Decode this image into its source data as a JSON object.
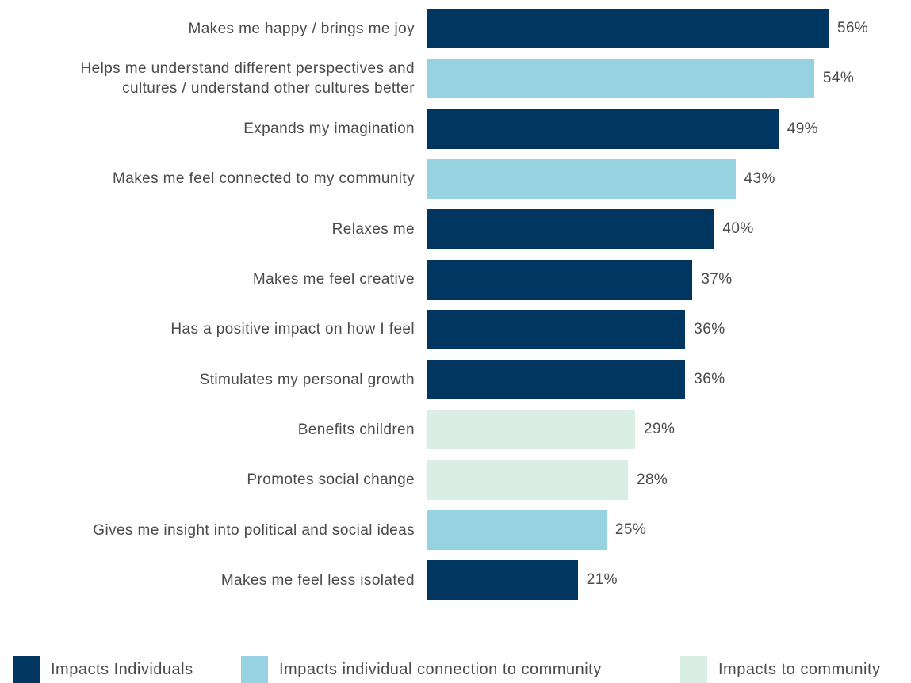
{
  "chart_data": {
    "type": "bar",
    "orientation": "horizontal",
    "categories": [
      "Makes me happy / brings me joy",
      "Helps me understand different perspectives and cultures / understand other cultures better",
      "Expands my imagination",
      "Makes me feel connected to my community",
      "Relaxes me",
      "Makes me feel creative",
      "Has a positive impact on how I feel",
      "Stimulates my personal growth",
      "Benefits children",
      "Promotes social change",
      "Gives me insight into political and social ideas",
      "Makes me feel less isolated"
    ],
    "category_lines": [
      [
        "Makes me happy / brings me joy"
      ],
      [
        "Helps me understand different perspectives and",
        "cultures / understand other cultures better"
      ],
      [
        "Expands my imagination"
      ],
      [
        "Makes me feel connected to my community"
      ],
      [
        "Relaxes me"
      ],
      [
        "Makes me feel creative"
      ],
      [
        "Has a positive impact on how I feel"
      ],
      [
        "Stimulates my personal growth"
      ],
      [
        "Benefits children"
      ],
      [
        "Promotes social change"
      ],
      [
        "Gives me insight into political and social ideas"
      ],
      [
        "Makes me feel less isolated"
      ]
    ],
    "values": [
      56,
      54,
      49,
      43,
      40,
      37,
      36,
      36,
      29,
      28,
      25,
      21
    ],
    "value_labels": [
      "56%",
      "54%",
      "49%",
      "43%",
      "40%",
      "37%",
      "36%",
      "36%",
      "29%",
      "28%",
      "25%",
      "21%"
    ],
    "groups": [
      0,
      1,
      0,
      1,
      0,
      0,
      0,
      0,
      2,
      2,
      1,
      0
    ],
    "legend": [
      {
        "name": "Impacts Individuals",
        "color": "#003660"
      },
      {
        "name": "Impacts individual connection to community",
        "color": "#96d2df"
      },
      {
        "name": "Impacts to community",
        "color": "#dbeee6"
      }
    ],
    "legend_position": "bottom",
    "xlim": [
      0,
      56
    ],
    "grid": false,
    "title": "",
    "xlabel": "",
    "ylabel": ""
  }
}
